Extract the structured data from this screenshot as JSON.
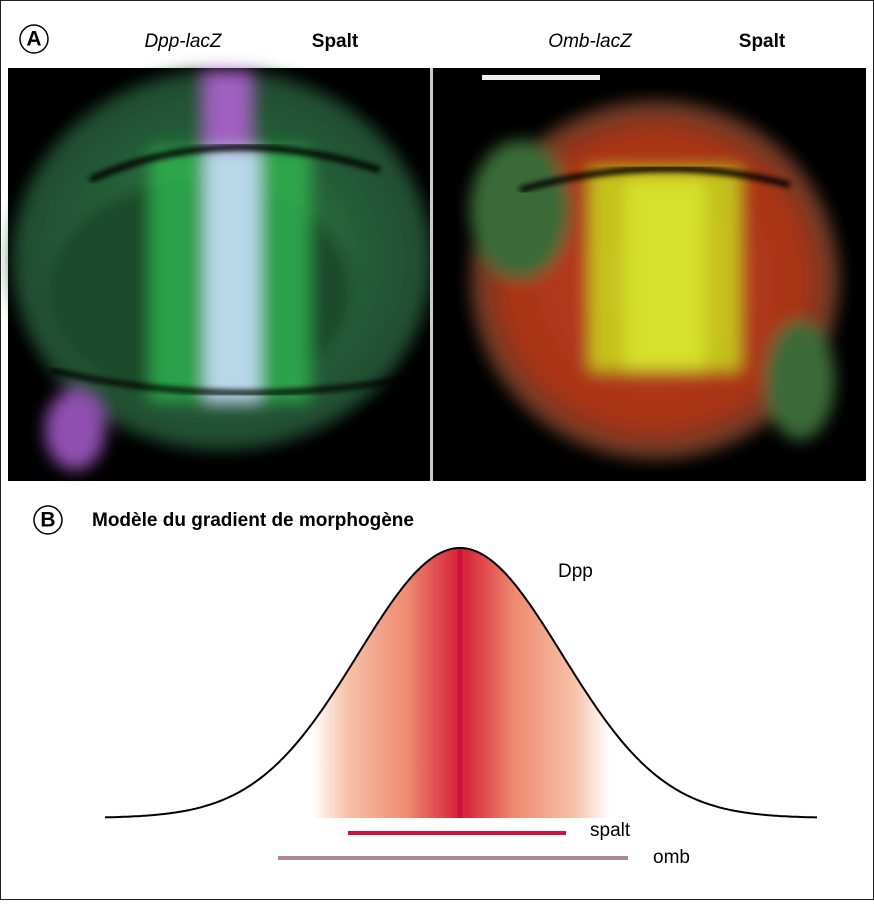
{
  "panel_a": {
    "label": "A",
    "columns": [
      {
        "marker": "Dpp-lacZ",
        "stain": "Spalt"
      },
      {
        "marker": "Omb-lacZ",
        "stain": "Spalt"
      }
    ]
  },
  "panel_b": {
    "label": "B",
    "title": "Modèle du gradient de morphogène",
    "curve_label": "Dpp",
    "bars": [
      {
        "label": "spalt"
      },
      {
        "label": "omb"
      }
    ]
  }
}
